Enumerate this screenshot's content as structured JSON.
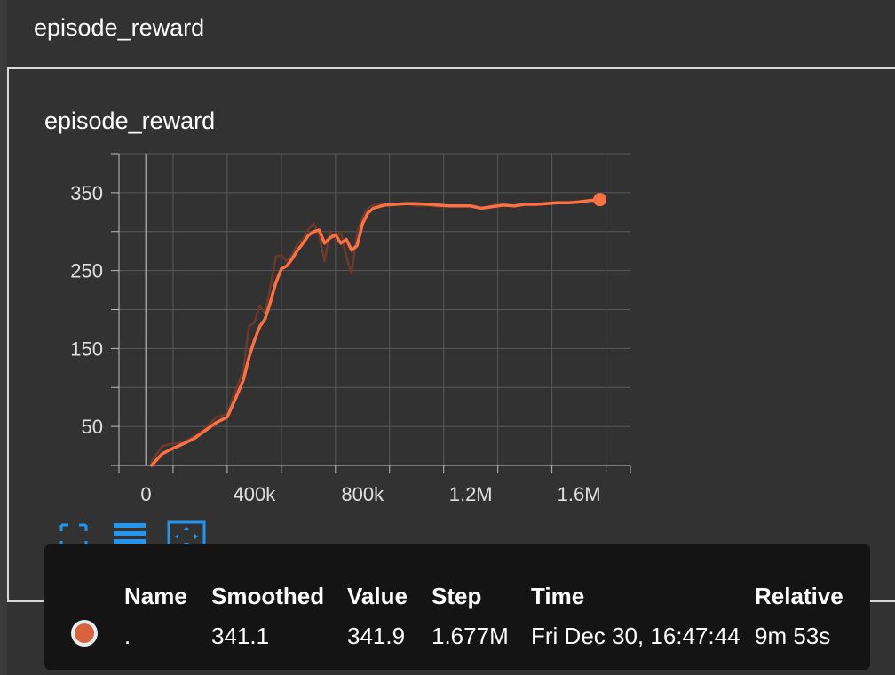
{
  "header": {
    "title": "episode_reward"
  },
  "chart_data": {
    "type": "line",
    "title": "episode_reward",
    "xlabel": "",
    "ylabel": "",
    "xlim": [
      -100000,
      1790000
    ],
    "ylim": [
      0,
      400
    ],
    "x_ticks": [
      0,
      400000,
      800000,
      1200000,
      1600000
    ],
    "x_tick_labels": [
      "0",
      "400k",
      "800k",
      "1.2M",
      "1.6M"
    ],
    "y_ticks": [
      50,
      150,
      250,
      350
    ],
    "y_tick_labels": [
      "50",
      "150",
      "250",
      "350"
    ],
    "grid": true,
    "series": [
      {
        "smoothed": true,
        "color": "#ff7043",
        "x": [
          20000,
          60000,
          100000,
          140000,
          180000,
          220000,
          260000,
          300000,
          330000,
          360000,
          380000,
          400000,
          420000,
          440000,
          460000,
          480000,
          500000,
          520000,
          540000,
          560000,
          580000,
          600000,
          620000,
          640000,
          660000,
          680000,
          700000,
          720000,
          740000,
          760000,
          780000,
          800000,
          820000,
          840000,
          860000,
          880000,
          920000,
          960000,
          1000000,
          1040000,
          1080000,
          1120000,
          1160000,
          1200000,
          1240000,
          1280000,
          1320000,
          1360000,
          1400000,
          1440000,
          1480000,
          1520000,
          1560000,
          1600000,
          1640000,
          1677000
        ],
        "y": [
          0,
          15,
          22,
          28,
          35,
          45,
          55,
          62,
          85,
          110,
          138,
          160,
          178,
          188,
          210,
          235,
          252,
          256,
          265,
          276,
          285,
          295,
          300,
          302,
          285,
          292,
          296,
          285,
          290,
          276,
          282,
          310,
          324,
          330,
          332,
          334,
          335,
          336,
          336,
          335,
          334,
          333,
          333,
          333,
          330,
          332,
          334,
          333,
          335,
          335,
          336,
          337,
          337,
          338,
          340,
          341.1
        ]
      },
      {
        "smoothed": false,
        "color": "#6b3a2c",
        "x": [
          20000,
          60000,
          100000,
          140000,
          180000,
          220000,
          260000,
          300000,
          330000,
          360000,
          380000,
          400000,
          420000,
          440000,
          460000,
          480000,
          500000,
          520000,
          540000,
          560000,
          580000,
          600000,
          620000,
          640000,
          660000,
          680000,
          700000,
          720000,
          740000,
          760000,
          780000,
          800000,
          820000,
          840000,
          860000,
          880000,
          920000,
          960000,
          1000000,
          1040000,
          1080000,
          1120000,
          1160000,
          1200000,
          1240000,
          1280000,
          1320000,
          1360000,
          1400000,
          1440000,
          1480000,
          1520000,
          1560000,
          1600000,
          1640000,
          1677000
        ],
        "y": [
          5,
          25,
          28,
          30,
          38,
          48,
          62,
          66,
          95,
          122,
          178,
          183,
          205,
          195,
          230,
          268,
          270,
          262,
          270,
          285,
          290,
          303,
          310,
          296,
          262,
          300,
          290,
          300,
          268,
          246,
          298,
          318,
          330,
          334,
          336,
          336,
          334,
          336,
          333,
          334,
          332,
          333,
          334,
          332,
          329,
          334,
          336,
          332,
          335,
          336,
          337,
          338,
          337,
          339,
          340,
          341.9
        ]
      }
    ]
  },
  "toolbar": {
    "icons": [
      "fit-domain-icon",
      "toggle-log-scale-icon",
      "expand-chart-icon"
    ]
  },
  "tooltip": {
    "headers": {
      "name": "Name",
      "smoothed": "Smoothed",
      "value": "Value",
      "step": "Step",
      "time": "Time",
      "relative": "Relative"
    },
    "row": {
      "name": ".",
      "smoothed": "341.1",
      "value": "341.9",
      "step": "1.677M",
      "time": "Fri Dec 30, 16:47:44",
      "relative": "9m 53s"
    },
    "swatch_color": "#d9623c"
  }
}
